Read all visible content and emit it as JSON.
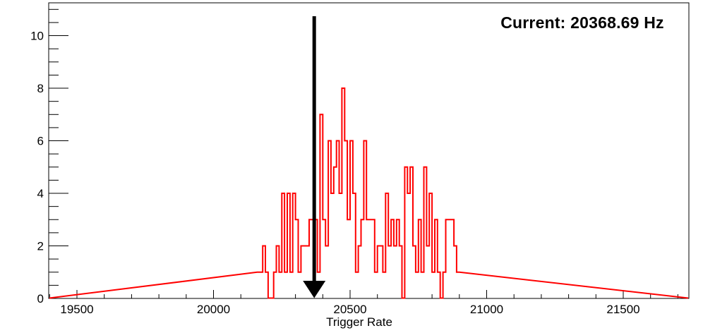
{
  "chart_data": {
    "type": "bar",
    "subtype": "step-histogram",
    "title": "Current: 20368.69 Hz",
    "xlabel": "Trigger Rate",
    "ylabel": "",
    "current_value_hz": 20368.69,
    "x_range": [
      19396.6,
      21740.3
    ],
    "y_range": [
      0,
      11.25
    ],
    "x_major_ticks": [
      19500,
      20000,
      20500,
      21000,
      21500
    ],
    "x_minor_step": 100,
    "y_major_ticks": [
      0,
      2,
      4,
      6,
      8,
      10
    ],
    "y_minor_step": 0.5,
    "grid": false,
    "legend": "none",
    "bin_start": 20160,
    "bin_width": 10,
    "bin_counts": [
      1,
      1,
      2,
      1,
      0,
      0,
      1,
      2,
      1,
      4,
      1,
      4,
      1,
      4,
      3,
      1,
      2,
      2,
      2,
      3,
      3,
      3,
      1,
      7,
      3,
      2,
      6,
      4,
      5,
      6,
      4,
      8,
      6,
      3,
      6,
      4,
      1,
      2,
      3,
      6,
      3,
      3,
      3,
      1,
      2,
      2,
      1,
      4,
      2,
      3,
      2,
      3,
      2,
      0,
      5,
      4,
      5,
      2,
      1,
      3,
      1,
      5,
      2,
      4,
      1,
      3,
      1,
      0,
      1,
      3,
      3,
      3,
      2,
      1
    ],
    "arrow_value": 20368.69,
    "colors": {
      "histogram": "#ff0000",
      "arrow": "#000000",
      "frame": "#000000",
      "text": "#000000",
      "background": "#ffffff"
    }
  }
}
